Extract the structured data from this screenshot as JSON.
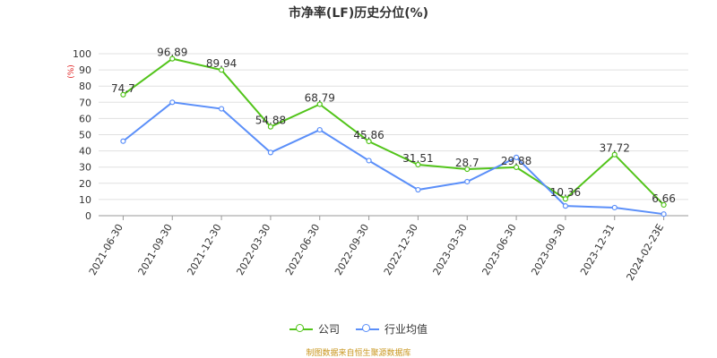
{
  "chart_data": {
    "type": "line",
    "title": "市净率(LF)历史分位(%)",
    "ylabel": "(%)",
    "ylim": [
      0,
      100
    ],
    "yticks": [
      0,
      10,
      20,
      30,
      40,
      50,
      60,
      70,
      80,
      90,
      100
    ],
    "grid": true,
    "categories": [
      "2021-06-30",
      "2021-09-30",
      "2021-12-30",
      "2022-03-30",
      "2022-06-30",
      "2022-09-30",
      "2022-12-30",
      "2023-03-30",
      "2023-06-30",
      "2023-09-30",
      "2023-12-31",
      "2024-02-23E"
    ],
    "series": [
      {
        "name": "公司",
        "color": "#52c41a",
        "values": [
          74.7,
          96.89,
          89.94,
          54.88,
          68.79,
          45.86,
          31.51,
          28.7,
          29.88,
          10.36,
          37.72,
          6.66
        ],
        "labels": [
          "74.7",
          "96.89",
          "89.94",
          "54.88",
          "68.79",
          "45.86",
          "31.51",
          "28.7",
          "29.88",
          "10.36",
          "37.72",
          "6.66"
        ]
      },
      {
        "name": "行业均值",
        "color": "#5b8ff9",
        "values": [
          46,
          70,
          66,
          39,
          53,
          34,
          16,
          21,
          36,
          6,
          5,
          1
        ]
      }
    ],
    "legend_position": "bottom"
  },
  "source_note": "制图数据来自恒生聚源数据库"
}
